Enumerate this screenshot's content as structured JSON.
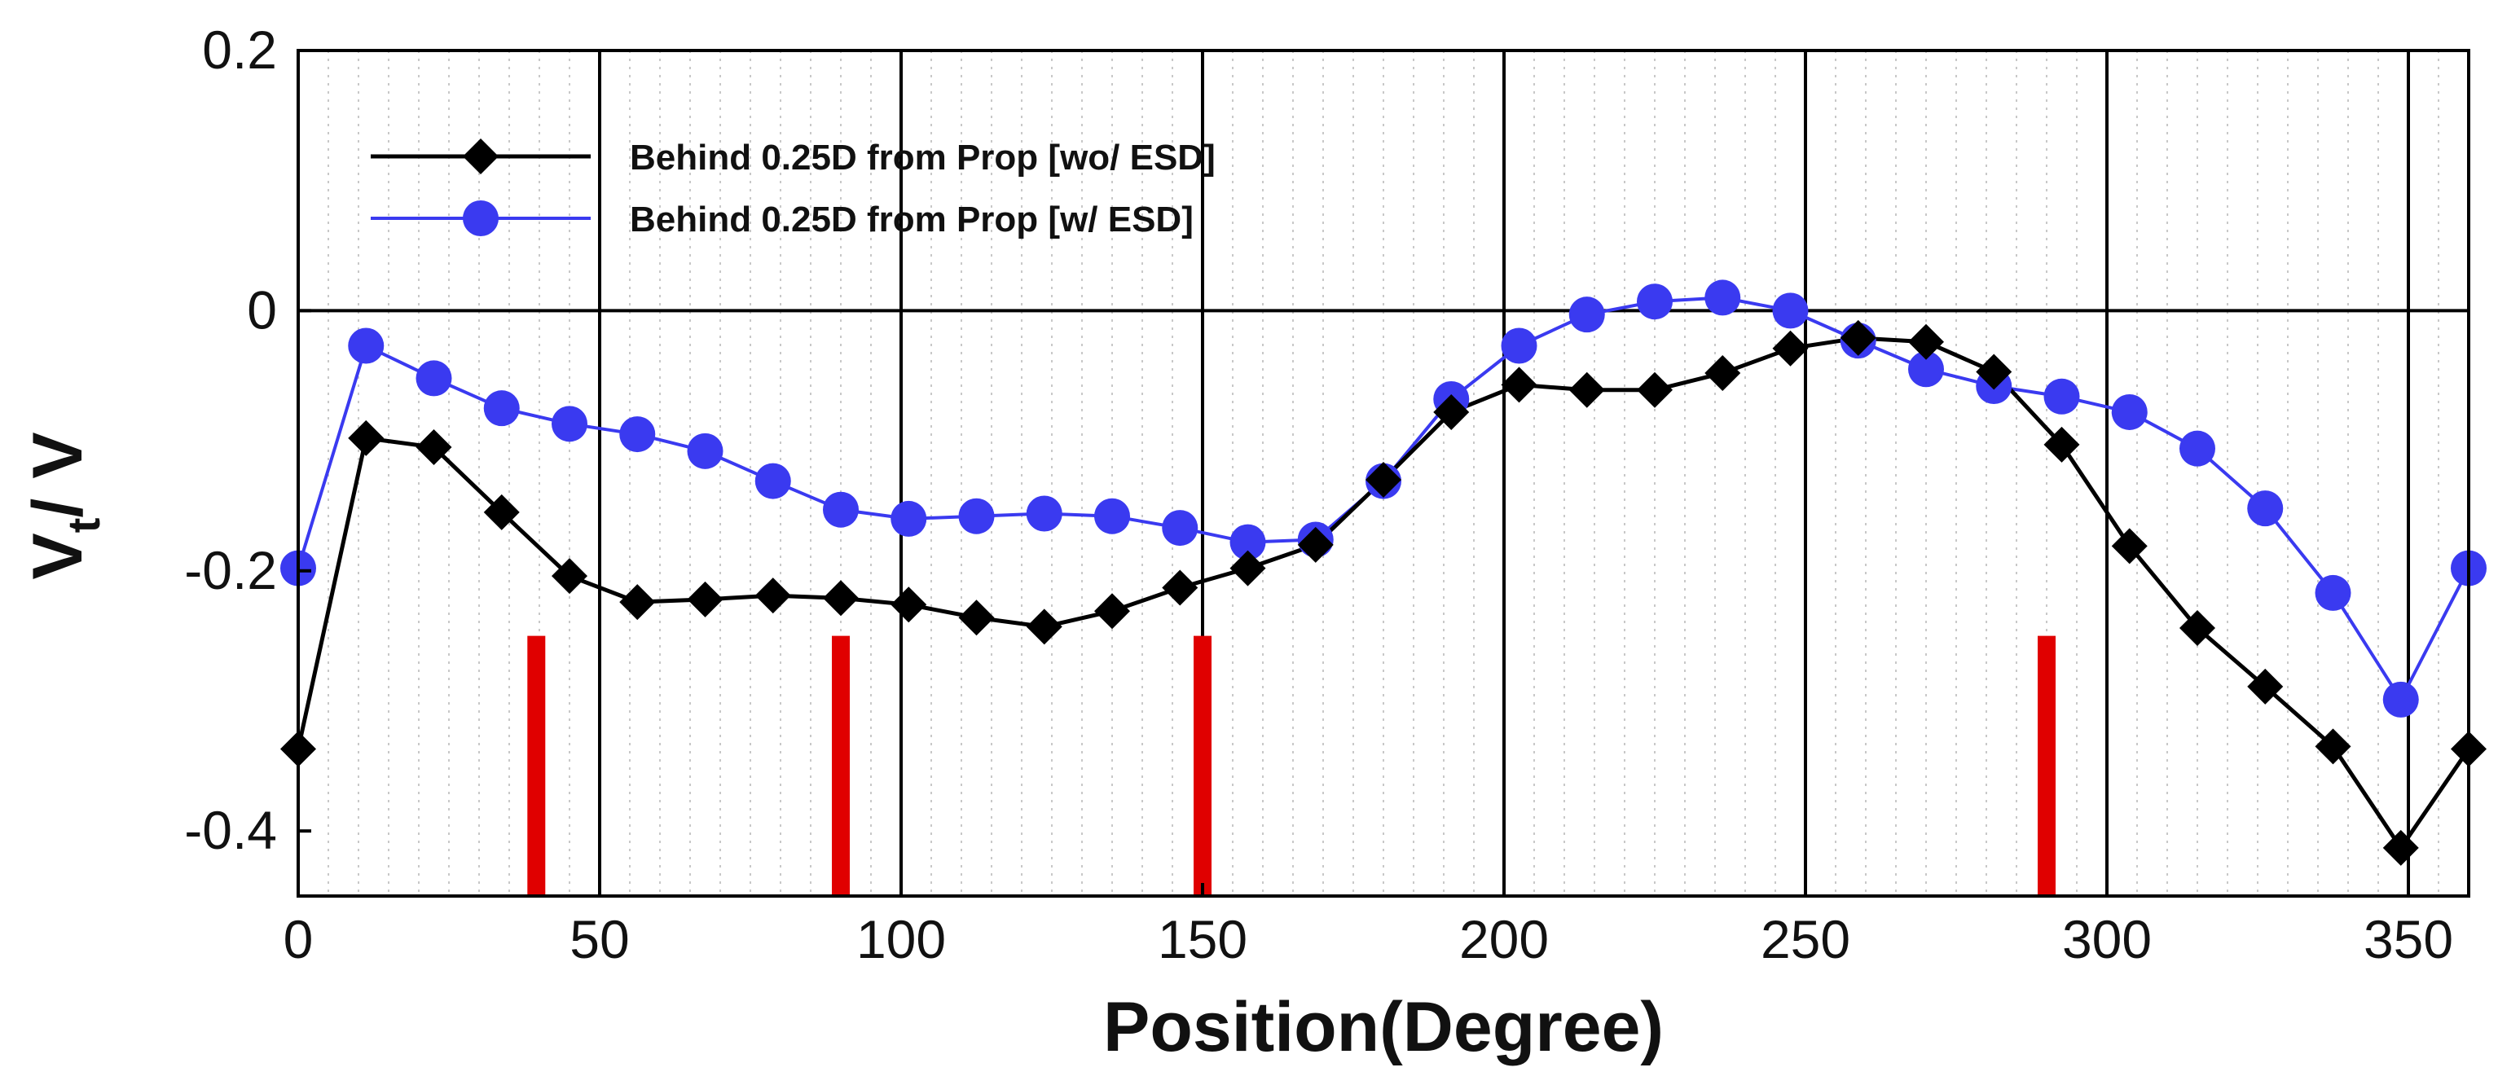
{
  "chart_data": {
    "type": "line",
    "title": "",
    "xlabel": "Position(Degree)",
    "ylabel": "V",
    "ylabel_subscript": "t",
    "ylabel_suffix": "/ V",
    "xlim": [
      0,
      360
    ],
    "ylim": [
      -0.45,
      0.2
    ],
    "xticks": [
      0,
      50,
      100,
      150,
      200,
      250,
      300,
      350
    ],
    "yticks": [
      0.2,
      0,
      -0.2,
      -0.4
    ],
    "ytick_labels": [
      "0.2",
      "0",
      "-0.2",
      "-0.4"
    ],
    "major_grid_x": [
      50,
      100,
      150,
      200,
      250,
      300,
      350
    ],
    "minor_grid_step": 5,
    "reference_line_y": 0,
    "legend_position": "top-left",
    "series": [
      {
        "name": "Behind 0.25D from Prop [wo/ ESD]",
        "color": "#000000",
        "marker": "diamond",
        "x": [
          0,
          11.25,
          22.5,
          33.75,
          45,
          56.25,
          67.5,
          78.75,
          90,
          101.25,
          112.5,
          123.75,
          135,
          146.25,
          157.5,
          168.75,
          180,
          191.25,
          202.5,
          213.75,
          225,
          236.25,
          247.5,
          258.75,
          270,
          281.25,
          292.5,
          303.75,
          315,
          326.25,
          337.5,
          348.75,
          360
        ],
        "y": [
          -0.337,
          -0.098,
          -0.105,
          -0.155,
          -0.204,
          -0.224,
          -0.222,
          -0.219,
          -0.221,
          -0.226,
          -0.236,
          -0.243,
          -0.231,
          -0.213,
          -0.198,
          -0.18,
          -0.13,
          -0.078,
          -0.057,
          -0.061,
          -0.061,
          -0.048,
          -0.029,
          -0.021,
          -0.024,
          -0.047,
          -0.103,
          -0.181,
          -0.244,
          -0.289,
          -0.335,
          -0.413,
          -0.337
        ]
      },
      {
        "name": "Behind 0.25D from Prop [w/ ESD]",
        "color": "#3a3af0",
        "marker": "circle",
        "x": [
          0,
          11.25,
          22.5,
          33.75,
          45,
          56.25,
          67.5,
          78.75,
          90,
          101.25,
          112.5,
          123.75,
          135,
          146.25,
          157.5,
          168.75,
          180,
          191.25,
          202.5,
          213.75,
          225,
          236.25,
          247.5,
          258.75,
          270,
          281.25,
          292.5,
          303.75,
          315,
          326.25,
          337.5,
          348.75,
          360
        ],
        "y": [
          -0.198,
          -0.027,
          -0.052,
          -0.075,
          -0.087,
          -0.095,
          -0.108,
          -0.131,
          -0.153,
          -0.16,
          -0.158,
          -0.156,
          -0.158,
          -0.167,
          -0.178,
          -0.176,
          -0.131,
          -0.068,
          -0.027,
          -0.003,
          0.007,
          0.01,
          0.0,
          -0.023,
          -0.045,
          -0.058,
          -0.066,
          -0.078,
          -0.106,
          -0.152,
          -0.217,
          -0.299,
          -0.198
        ]
      }
    ],
    "red_markers": {
      "color": "#e00000",
      "x": [
        39.5,
        90,
        150,
        290
      ],
      "y_bottom": -0.45,
      "y_top": -0.25
    }
  }
}
